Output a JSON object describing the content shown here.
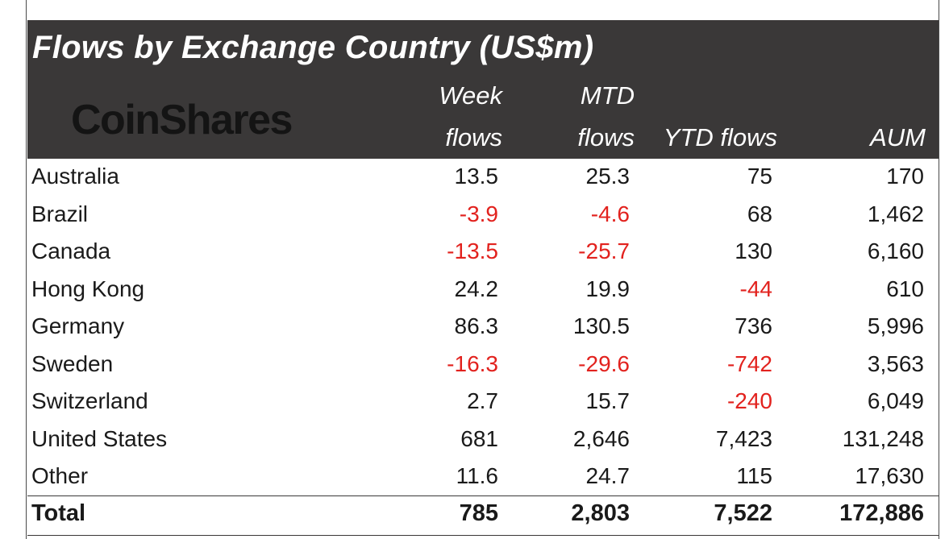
{
  "chart_data": {
    "type": "table",
    "title": "Flows by Exchange Country (US$m)",
    "logo": "CoinShares",
    "columns": [
      {
        "line1": "Week",
        "line2": "flows"
      },
      {
        "line1": "MTD",
        "line2": "flows"
      },
      {
        "line1": "",
        "line2": "YTD flows"
      },
      {
        "line1": "",
        "line2": "AUM"
      }
    ],
    "rows": [
      {
        "name": "Australia",
        "values": [
          "13.5",
          "25.3",
          "75",
          "170"
        ]
      },
      {
        "name": "Brazil",
        "values": [
          "-3.9",
          "-4.6",
          "68",
          "1,462"
        ]
      },
      {
        "name": "Canada",
        "values": [
          "-13.5",
          "-25.7",
          "130",
          "6,160"
        ]
      },
      {
        "name": "Hong Kong",
        "values": [
          "24.2",
          "19.9",
          "-44",
          "610"
        ]
      },
      {
        "name": "Germany",
        "values": [
          "86.3",
          "130.5",
          "736",
          "5,996"
        ]
      },
      {
        "name": "Sweden",
        "values": [
          "-16.3",
          "-29.6",
          "-742",
          "3,563"
        ]
      },
      {
        "name": "Switzerland",
        "values": [
          "2.7",
          "15.7",
          "-240",
          "6,049"
        ]
      },
      {
        "name": "United States",
        "values": [
          "681",
          "2,646",
          "7,423",
          "131,248"
        ]
      },
      {
        "name": "Other",
        "values": [
          "11.6",
          "24.7",
          "115",
          "17,630"
        ]
      }
    ],
    "total": {
      "name": "Total",
      "values": [
        "785",
        "2,803",
        "7,522",
        "172,886"
      ]
    }
  },
  "colors": {
    "header_bg": "#3a3838",
    "negative": "#e2221e",
    "text": "#1a1a1a"
  }
}
